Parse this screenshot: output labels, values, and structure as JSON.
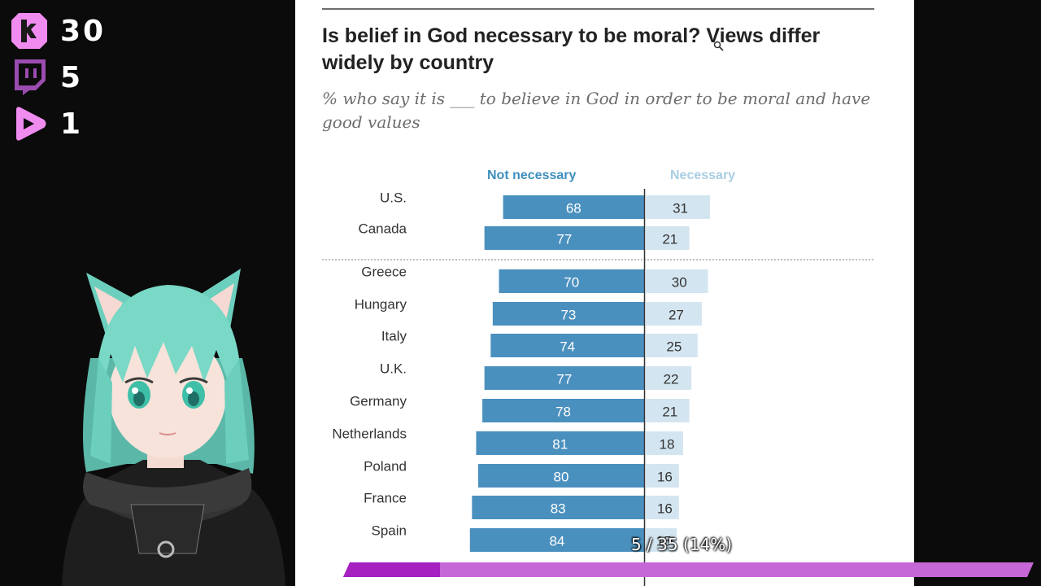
{
  "stream_stats": {
    "kick_count": "30",
    "twitch_count": "5",
    "youtube_count": "1",
    "icons": [
      "kick-logo-icon",
      "twitch-logo-icon",
      "youtube-play-icon"
    ],
    "accent_color": "#f08cf0"
  },
  "document": {
    "title": "Is belief in God necessary to be moral? Views differ widely by country",
    "subtitle": "% who say it is ___ to believe in God in order to be moral and have good values",
    "col_left": "Not necessary",
    "col_right": "Necessary"
  },
  "chart_data": {
    "type": "bar",
    "orientation": "horizontal-diverging",
    "categories": [
      "U.S.",
      "Canada",
      "Greece",
      "Hungary",
      "Italy",
      "U.K.",
      "Germany",
      "Netherlands",
      "Poland",
      "France",
      "Spain"
    ],
    "series": [
      {
        "name": "Not necessary",
        "values": [
          68,
          77,
          70,
          73,
          74,
          77,
          78,
          81,
          80,
          83,
          84
        ],
        "color": "#4a90bf"
      },
      {
        "name": "Necessary",
        "values": [
          31,
          21,
          30,
          27,
          25,
          22,
          21,
          18,
          16,
          16,
          15
        ],
        "color": "#d3e5f0"
      }
    ],
    "separator_after": "Canada",
    "label_color": "#333333"
  },
  "progress": {
    "label": "5 / 35 (14%)",
    "current": 5,
    "total": 35,
    "fraction": 0.14,
    "fill_color": "#a51fc1",
    "track_color": "#c567d6"
  }
}
